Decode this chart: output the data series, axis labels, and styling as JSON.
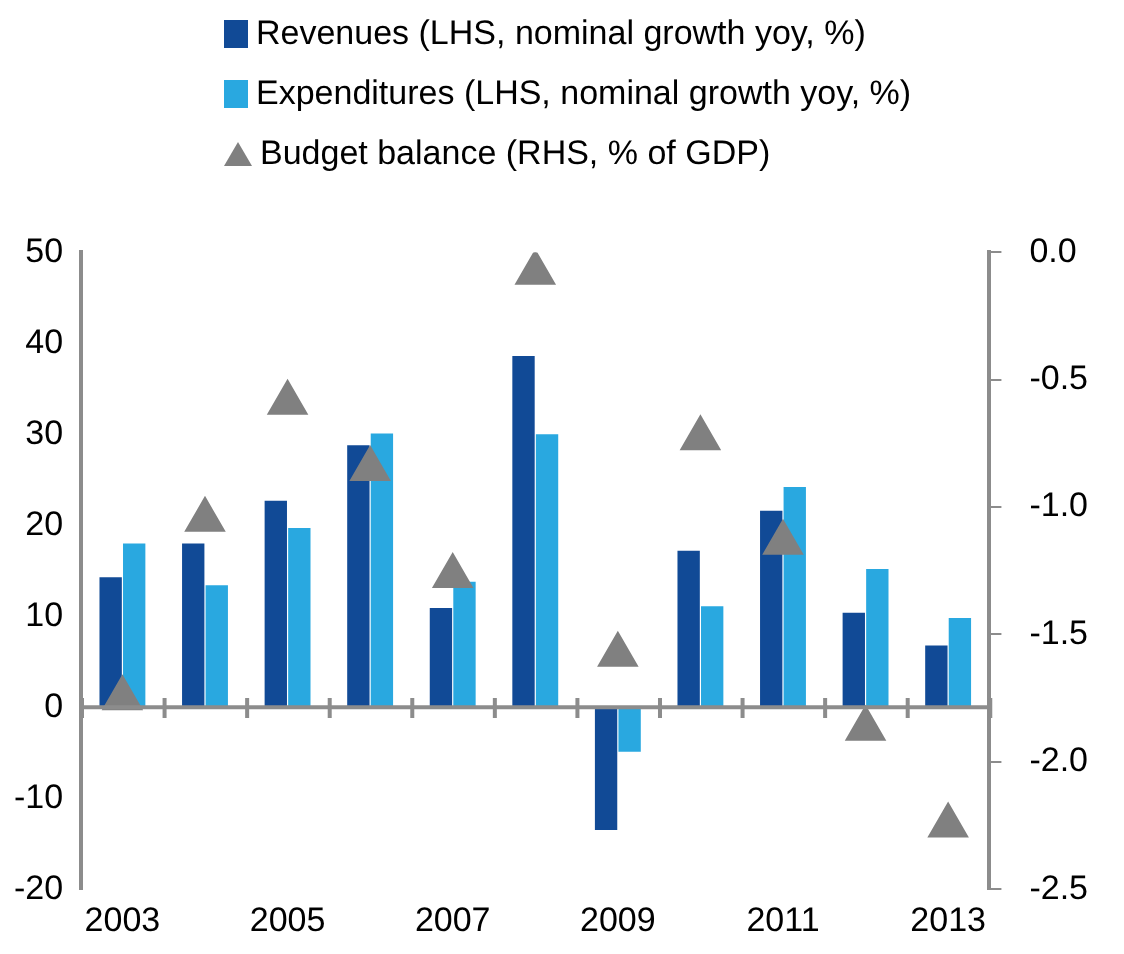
{
  "chart_data": {
    "type": "bar",
    "categories": [
      "2003",
      null,
      "2005",
      null,
      "2007",
      null,
      "2009",
      null,
      "2011",
      null,
      "2013"
    ],
    "series": [
      {
        "name": "Revenues (LHS, nominal growth yoy, %)",
        "color": "#114a96",
        "values": [
          14.3,
          18,
          22.7,
          28.8,
          10.9,
          38.6,
          -13.5,
          17.2,
          21.6,
          10.4,
          6.8
        ]
      },
      {
        "name": "Expenditures (LHS, nominal growth yoy, %)",
        "color": "#29a8e0",
        "values": [
          18,
          13.4,
          19.7,
          30.1,
          13.8,
          30,
          -4.9,
          11.1,
          24.2,
          15.2,
          9.8
        ]
      },
      {
        "name": "Budget balance (RHS, % of GDP)",
        "type": "scatter",
        "axis": "y2",
        "color": "#808080",
        "values": [
          -1.75,
          -1.05,
          -0.59,
          -0.85,
          -1.27,
          -0.08,
          -1.58,
          -0.73,
          -1.14,
          -1.87,
          -2.25
        ]
      }
    ],
    "ylim": [
      -20,
      50
    ],
    "yticks": [
      -20,
      -10,
      0,
      10,
      20,
      30,
      40,
      50
    ],
    "y2lim": [
      -2.5,
      0
    ],
    "y2ticks": [
      {
        "value": -2.5,
        "label": "-2.5"
      },
      {
        "value": -2,
        "label": "-2.0"
      },
      {
        "value": -1.5,
        "label": "-1.5"
      },
      {
        "value": -1,
        "label": "-1.0"
      },
      {
        "value": -0.5,
        "label": "-0.5"
      },
      {
        "value": 0,
        "label": "0.0"
      }
    ],
    "ref_lines": [
      {
        "axis": "y",
        "value": 0,
        "color": "#8c8c8c"
      }
    ],
    "marker": "triangle",
    "grid": false,
    "legend": "top"
  }
}
